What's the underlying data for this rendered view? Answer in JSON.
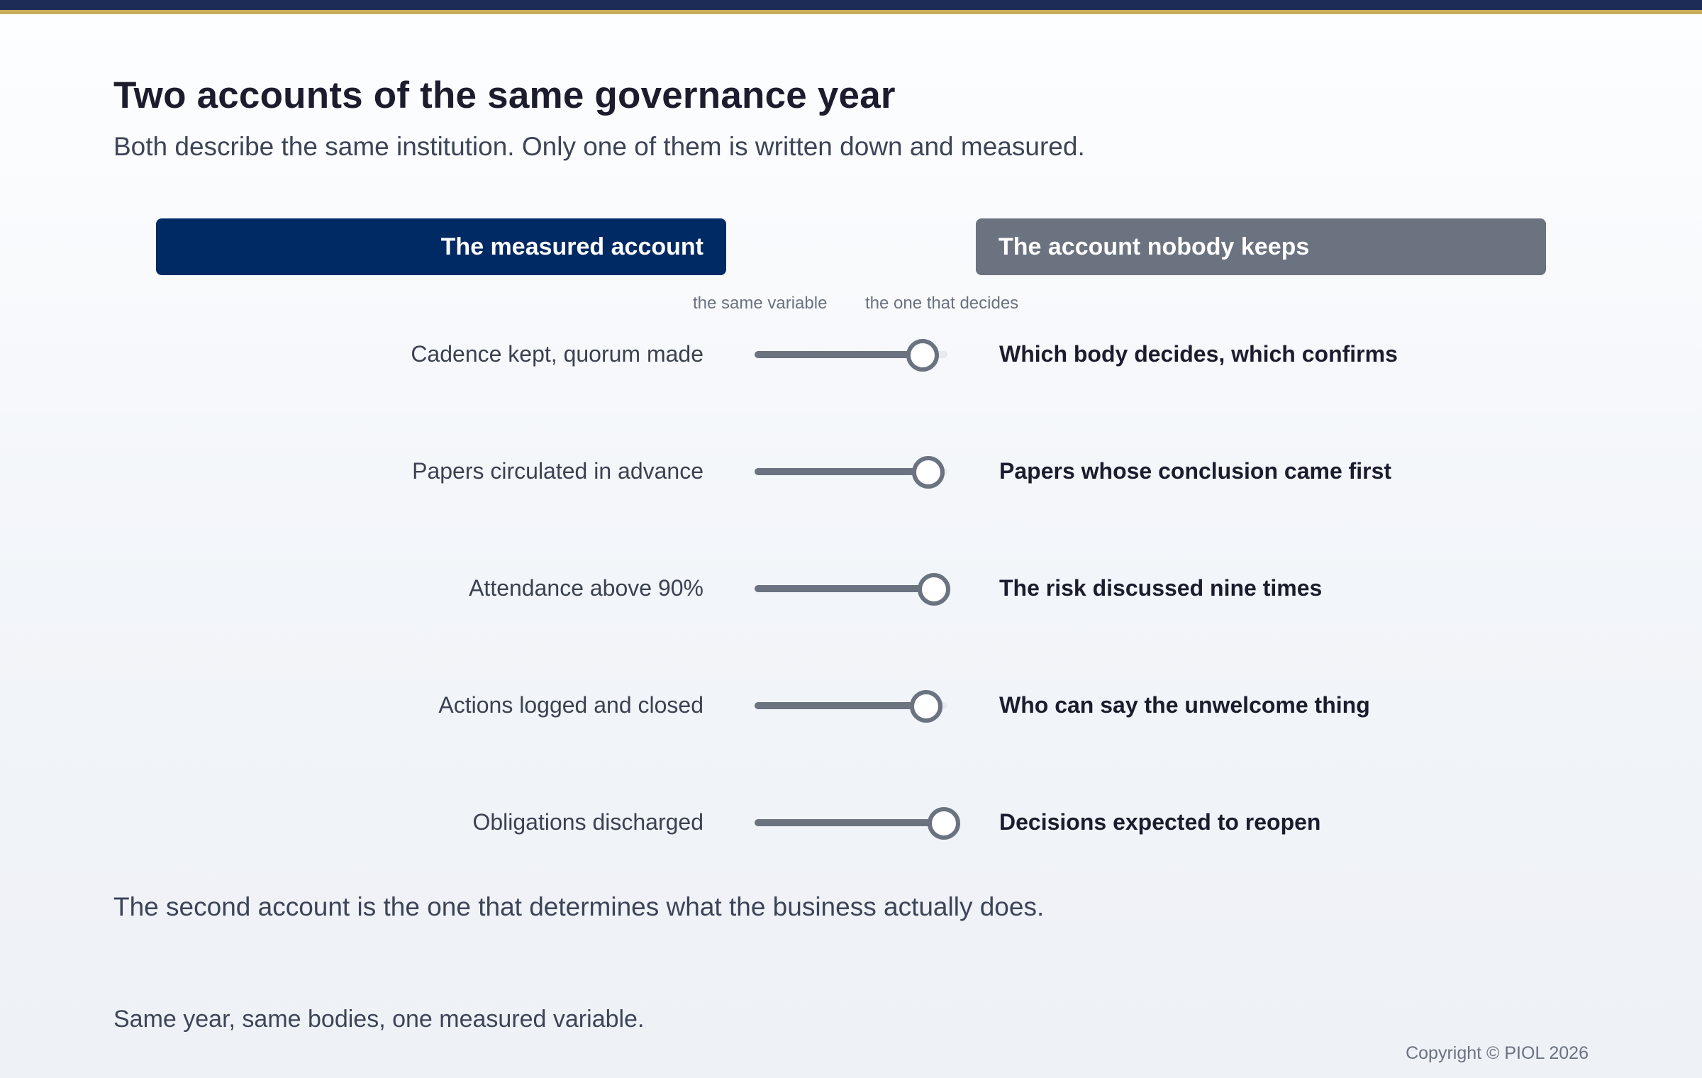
{
  "colors": {
    "top_bar": "#1d2c57",
    "top_bar_accent": "#c8ad5a",
    "measured_header_bg": "#002a63",
    "unkept_header_bg": "#6b7280",
    "slider": "#6b7280"
  },
  "header": {
    "title": "Two accounts of the same governance year",
    "subtitle": "Both describe the same institution. Only one of them is written down and measured."
  },
  "columns": {
    "measured_label": "The measured account",
    "unkept_label": "The account nobody keeps"
  },
  "scale": {
    "left_label": "the same variable",
    "right_label": "the one that decides"
  },
  "rows": [
    {
      "measured": "Cadence kept, quorum made",
      "unkept": "Which body decides, which confirms",
      "slider_value": 0.87
    },
    {
      "measured": "Papers circulated in advance",
      "unkept": "Papers whose conclusion came first",
      "slider_value": 0.9
    },
    {
      "measured": "Attendance above 90%",
      "unkept": "The risk discussed nine times",
      "slider_value": 0.93
    },
    {
      "measured": "Actions logged and closed",
      "unkept": "Who can say the unwelcome thing",
      "slider_value": 0.89
    },
    {
      "measured": "Obligations discharged",
      "unkept": "Decisions expected to reopen",
      "slider_value": 0.98
    }
  ],
  "conclusion": "The second account is the one that determines what the business actually does.",
  "footnote": "Same year, same bodies, one measured variable.",
  "copyright": "Copyright © PIOL 2026"
}
